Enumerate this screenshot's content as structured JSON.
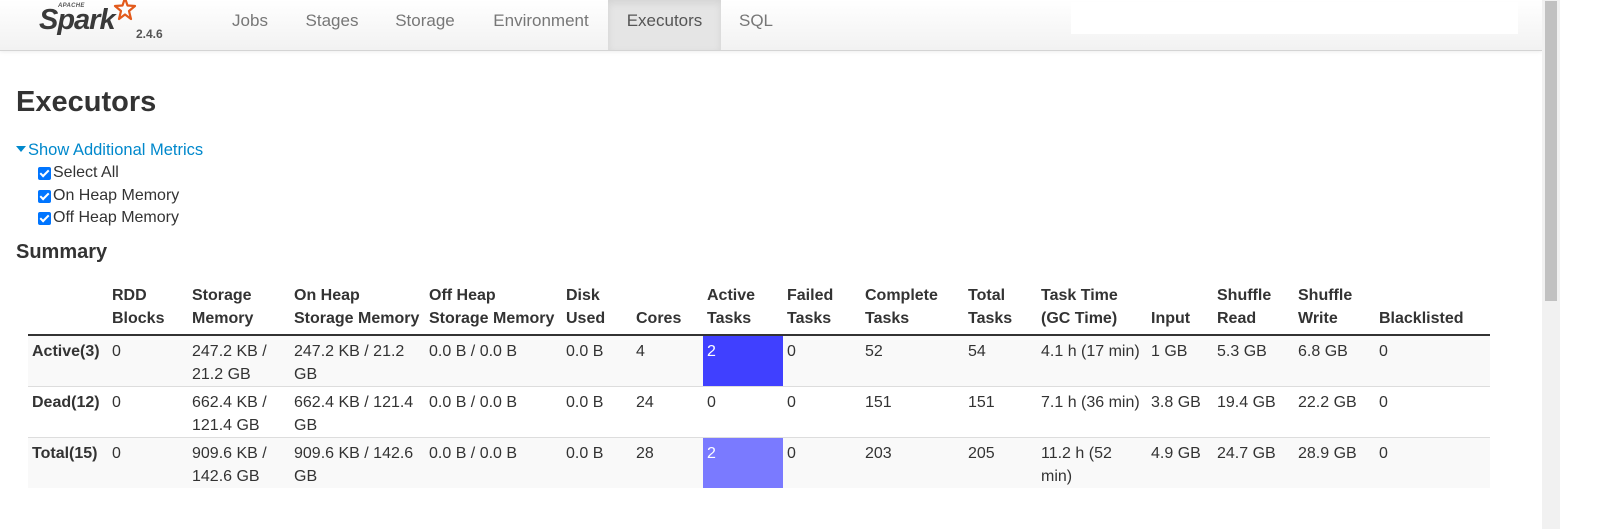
{
  "navbar": {
    "brand_apache": "APACHE",
    "brand_name": "Spark",
    "version": "2.4.6",
    "tabs": [
      {
        "label": "Jobs"
      },
      {
        "label": "Stages"
      },
      {
        "label": "Storage"
      },
      {
        "label": "Environment"
      },
      {
        "label": "Executors",
        "active": true
      },
      {
        "label": "SQL"
      }
    ]
  },
  "page": {
    "title": "Executors",
    "toggle_label": "Show Additional Metrics",
    "metrics": [
      {
        "label": "Select All",
        "checked": true
      },
      {
        "label": "On Heap Memory",
        "checked": true
      },
      {
        "label": "Off Heap Memory",
        "checked": true
      }
    ],
    "summary_title": "Summary"
  },
  "table": {
    "headers": {
      "rdd_blocks": "RDD Blocks",
      "storage_memory": "Storage Memory",
      "on_heap": "On Heap Storage Memory",
      "off_heap": "Off Heap Storage Memory",
      "disk_used": "Disk Used",
      "cores": "Cores",
      "active_tasks": "Active Tasks",
      "failed_tasks": "Failed Tasks",
      "complete_tasks": "Complete Tasks",
      "total_tasks": "Total Tasks",
      "task_time": "Task Time (GC Time)",
      "input": "Input",
      "shuffle_read": "Shuffle Read",
      "shuffle_write": "Shuffle Write",
      "blacklisted": "Blacklisted"
    },
    "rows": [
      {
        "label": "Active(3)",
        "rdd_blocks": "0",
        "storage_memory": "247.2 KB / 21.2 GB",
        "on_heap": "247.2 KB / 21.2 GB",
        "off_heap": "0.0 B / 0.0 B",
        "disk_used": "0.0 B",
        "cores": "4",
        "active_tasks": "2",
        "failed_tasks": "0",
        "complete_tasks": "52",
        "total_tasks": "54",
        "task_time": "4.1 h (17 min)",
        "input": "1 GB",
        "shuffle_read": "5.3 GB",
        "shuffle_write": "6.8 GB",
        "blacklisted": "0"
      },
      {
        "label": "Dead(12)",
        "rdd_blocks": "0",
        "storage_memory": "662.4 KB / 121.4 GB",
        "on_heap": "662.4 KB / 121.4 GB",
        "off_heap": "0.0 B / 0.0 B",
        "disk_used": "0.0 B",
        "cores": "24",
        "active_tasks": "0",
        "failed_tasks": "0",
        "complete_tasks": "151",
        "total_tasks": "151",
        "task_time": "7.1 h (36 min)",
        "input": "3.8 GB",
        "shuffle_read": "19.4 GB",
        "shuffle_write": "22.2 GB",
        "blacklisted": "0"
      },
      {
        "label": "Total(15)",
        "rdd_blocks": "0",
        "storage_memory": "909.6 KB / 142.6 GB",
        "on_heap": "909.6 KB / 142.6 GB",
        "off_heap": "0.0 B / 0.0 B",
        "disk_used": "0.0 B",
        "cores": "28",
        "active_tasks": "2",
        "failed_tasks": "0",
        "complete_tasks": "203",
        "total_tasks": "205",
        "task_time": "11.2 h (52 min)",
        "input": "4.9 GB",
        "shuffle_read": "24.7 GB",
        "shuffle_write": "28.9 GB",
        "blacklisted": "0"
      }
    ]
  },
  "colors": {
    "active_tasks_heat_active": "#4040ff",
    "active_tasks_heat_total": "#7a7aff",
    "link": "#0088cc"
  }
}
